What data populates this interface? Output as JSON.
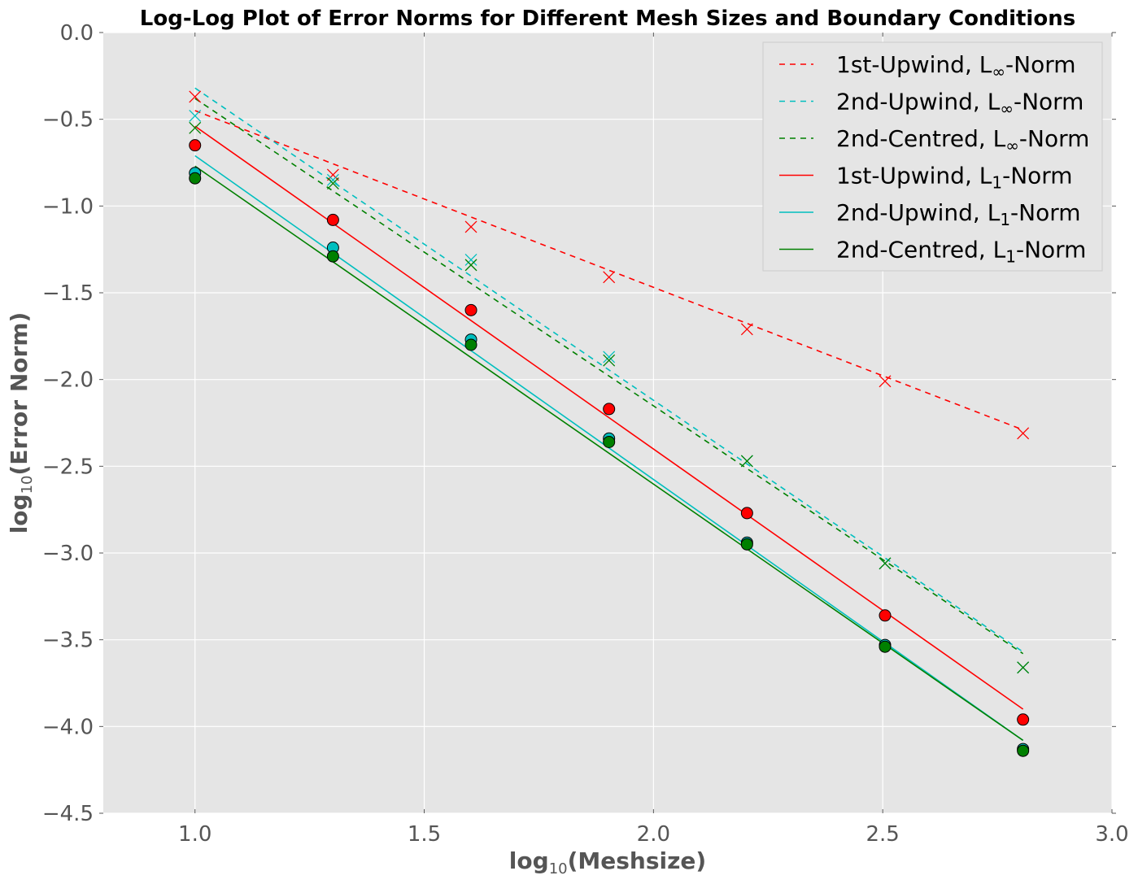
{
  "chart_data": {
    "type": "scatter",
    "title": "Log-Log Plot of Error Norms for Different Mesh Sizes and Boundary Conditions",
    "xlabel": {
      "prefix": "log",
      "sub": "10",
      "suffix": "(Meshsize)"
    },
    "ylabel": {
      "prefix": "log",
      "sub": "10",
      "suffix": "(Error Norm)"
    },
    "xlim": [
      0.8,
      3.0
    ],
    "ylim": [
      -4.5,
      0.0
    ],
    "xticks": [
      1.0,
      1.5,
      2.0,
      2.5,
      3.0
    ],
    "xtick_labels": [
      "1.0",
      "1.5",
      "2.0",
      "2.5",
      "3.0"
    ],
    "yticks": [
      0.0,
      -0.5,
      -1.0,
      -1.5,
      -2.0,
      -2.5,
      -3.0,
      -3.5,
      -4.0,
      -4.5
    ],
    "ytick_labels": [
      "0.0",
      "−0.5",
      "−1.0",
      "−1.5",
      "−2.0",
      "−2.5",
      "−3.0",
      "−3.5",
      "−4.0",
      "−4.5"
    ],
    "grid": true,
    "legend_position": "top-right",
    "x": [
      1.0,
      1.301,
      1.602,
      1.903,
      2.204,
      2.505,
      2.806
    ],
    "series": [
      {
        "name": "1st-Upwind, L∞-Norm",
        "label": {
          "pre": "1st-Upwind, L",
          "sub": "∞",
          "post": "-Norm"
        },
        "color": "#ff0000",
        "linestyle": "dashed",
        "marker": "x",
        "values": [
          -0.37,
          -0.82,
          -1.12,
          -1.41,
          -1.71,
          -2.01,
          -2.31
        ],
        "fit": [
          -0.45,
          -2.29
        ]
      },
      {
        "name": "2nd-Upwind, L∞-Norm",
        "label": {
          "pre": "2nd-Upwind, L",
          "sub": "∞",
          "post": "-Norm"
        },
        "color": "#00bfbf",
        "linestyle": "dashed",
        "marker": "x",
        "values": [
          -0.48,
          -0.85,
          -1.31,
          -1.87,
          -2.47,
          -3.06,
          -3.66
        ],
        "fit": [
          -0.32,
          -3.57
        ]
      },
      {
        "name": "2nd-Centred, L∞-Norm",
        "label": {
          "pre": "2nd-Centred, L",
          "sub": "∞",
          "post": "-Norm"
        },
        "color": "#008000",
        "linestyle": "dashed",
        "marker": "x",
        "values": [
          -0.55,
          -0.87,
          -1.34,
          -1.89,
          -2.47,
          -3.06,
          -3.66
        ],
        "fit": [
          -0.38,
          -3.58
        ]
      },
      {
        "name": "1st-Upwind, L1-Norm",
        "label": {
          "pre": "1st-Upwind, L",
          "sub": "1",
          "post": "-Norm"
        },
        "color": "#ff0000",
        "linestyle": "solid",
        "marker": "o",
        "values": [
          -0.65,
          -1.08,
          -1.6,
          -2.17,
          -2.77,
          -3.36,
          -3.96
        ],
        "fit": [
          -0.54,
          -3.9
        ]
      },
      {
        "name": "2nd-Upwind, L1-Norm",
        "label": {
          "pre": "2nd-Upwind, L",
          "sub": "1",
          "post": "-Norm"
        },
        "color": "#00bfbf",
        "linestyle": "solid",
        "marker": "o",
        "values": [
          -0.81,
          -1.24,
          -1.77,
          -2.34,
          -2.94,
          -3.53,
          -4.13
        ],
        "fit": [
          -0.71,
          -4.08
        ]
      },
      {
        "name": "2nd-Centred, L1-Norm",
        "label": {
          "pre": "2nd-Centred, L",
          "sub": "1",
          "post": "-Norm"
        },
        "color": "#008000",
        "linestyle": "solid",
        "marker": "o",
        "values": [
          -0.84,
          -1.29,
          -1.8,
          -2.36,
          -2.95,
          -3.54,
          -4.14
        ],
        "fit": [
          -0.77,
          -4.08
        ]
      }
    ]
  }
}
